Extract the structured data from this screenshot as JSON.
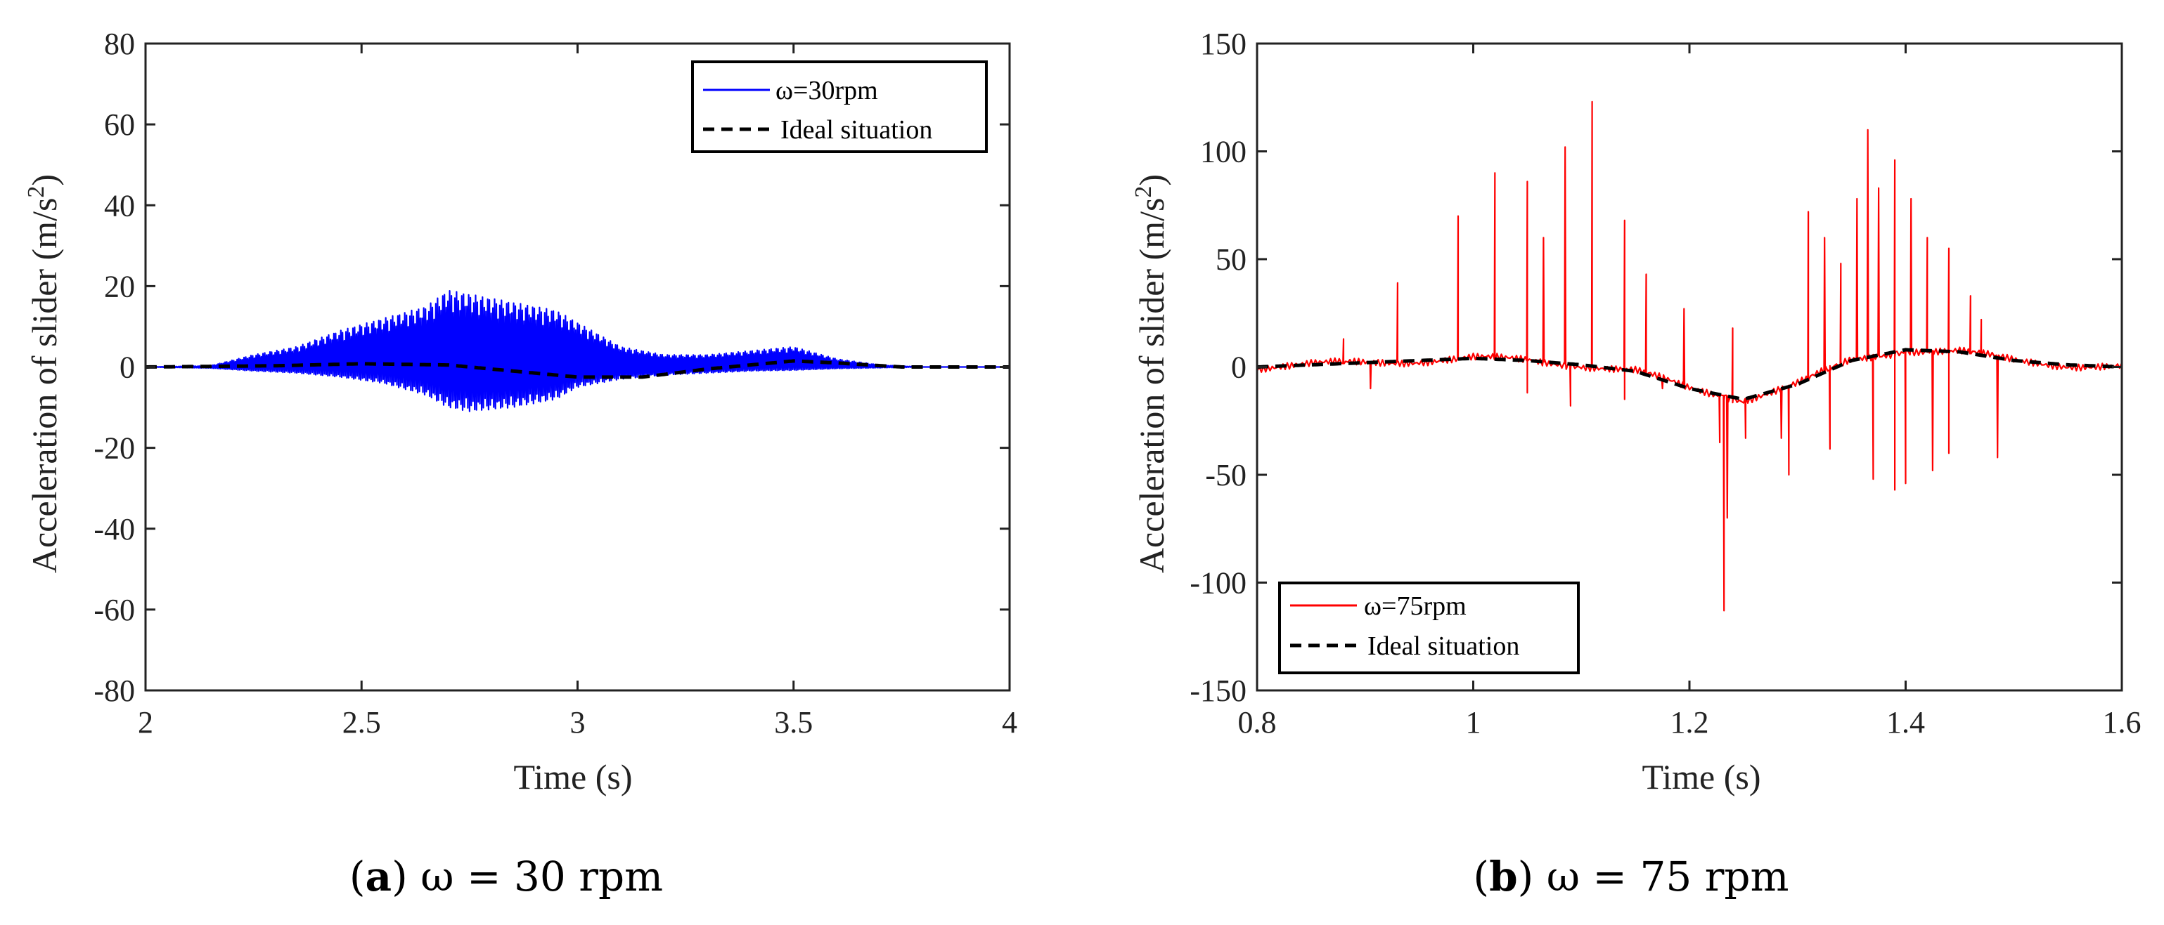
{
  "chart_data": [
    {
      "type": "line",
      "caption": {
        "letter": "a",
        "text": "ω = 30 rpm"
      },
      "xlabel": "Time (s)",
      "ylabel": "Acceleration of slider (m/s",
      "ylabel_sup": "2",
      "ylabel_close": ")",
      "xlim": [
        2,
        4
      ],
      "ylim": [
        -80,
        80
      ],
      "xticks": [
        "2",
        "2.5",
        "3",
        "3.5",
        "4"
      ],
      "xtick_values": [
        2,
        2.5,
        3,
        3.5,
        4
      ],
      "yticks": [
        "-80",
        "-60",
        "-40",
        "-20",
        "0",
        "20",
        "40",
        "60",
        "80"
      ],
      "ytick_values": [
        -80,
        -60,
        -40,
        -20,
        0,
        20,
        40,
        60,
        80
      ],
      "grid": false,
      "legend": "top-right",
      "series": [
        {
          "name": "ω=30rpm",
          "color": "#0000ff",
          "style": "solid",
          "envelope_x": [
            2.0,
            2.15,
            2.25,
            2.35,
            2.45,
            2.55,
            2.65,
            2.7,
            2.75,
            2.85,
            2.95,
            3.0,
            3.1,
            3.2,
            3.3,
            3.4,
            3.5,
            3.6,
            3.7,
            3.8,
            4.0
          ],
          "envelope_upper": [
            0,
            0.3,
            3,
            5,
            9,
            12,
            15,
            19,
            18,
            16,
            14,
            11,
            5,
            3,
            3,
            4,
            5,
            2,
            0.5,
            0,
            0
          ],
          "envelope_lower": [
            0,
            -0.3,
            -1,
            -1.5,
            -2.5,
            -4,
            -7,
            -10,
            -11,
            -10,
            -8,
            -5,
            -3,
            -2,
            -1.5,
            -1,
            -0.8,
            -0.4,
            -0.2,
            0,
            0
          ],
          "oscillation_hz": 250
        },
        {
          "name": "Ideal situation",
          "color": "#000000",
          "style": "dashed",
          "x": [
            2.0,
            2.3,
            2.5,
            2.7,
            2.85,
            3.0,
            3.15,
            3.3,
            3.5,
            3.6,
            3.75,
            4.0
          ],
          "y": [
            0,
            0.3,
            0.8,
            0.5,
            -1,
            -2.5,
            -2.5,
            -0.5,
            1.5,
            1,
            0,
            0
          ]
        }
      ]
    },
    {
      "type": "line",
      "caption": {
        "letter": "b",
        "text": "ω = 75 rpm"
      },
      "xlabel": "Time (s)",
      "ylabel": "Acceleration of slider (m/s",
      "ylabel_sup": "2",
      "ylabel_close": ")",
      "xlim": [
        0.8,
        1.6
      ],
      "ylim": [
        -150,
        150
      ],
      "xticks": [
        "0.8",
        "1",
        "1.2",
        "1.4",
        "1.6"
      ],
      "xtick_values": [
        0.8,
        1.0,
        1.2,
        1.4,
        1.6
      ],
      "yticks": [
        "-150",
        "-100",
        "-50",
        "0",
        "50",
        "100",
        "150"
      ],
      "ytick_values": [
        -150,
        -100,
        -50,
        0,
        50,
        100,
        150
      ],
      "grid": false,
      "legend": "bottom-left",
      "series": [
        {
          "name": "ω=75rpm",
          "color": "#ff0000",
          "style": "solid",
          "x": [
            0.8,
            0.85,
            0.9,
            0.95,
            1.0,
            1.05,
            1.1,
            1.15,
            1.2,
            1.25,
            1.3,
            1.35,
            1.4,
            1.45,
            1.5,
            1.55,
            1.6
          ],
          "y": [
            0,
            1,
            2,
            3,
            4,
            3,
            1,
            -2,
            -10,
            -15,
            -8,
            3,
            8,
            7,
            3,
            1,
            0
          ],
          "spikes": [
            {
              "x": 0.88,
              "y": 13
            },
            {
              "x": 0.93,
              "y": 39
            },
            {
              "x": 0.986,
              "y": 70
            },
            {
              "x": 1.02,
              "y": 90
            },
            {
              "x": 1.05,
              "y": 86
            },
            {
              "x": 1.065,
              "y": 60
            },
            {
              "x": 1.085,
              "y": 102
            },
            {
              "x": 1.11,
              "y": 123
            },
            {
              "x": 1.14,
              "y": 68
            },
            {
              "x": 1.16,
              "y": 43
            },
            {
              "x": 1.195,
              "y": 27
            },
            {
              "x": 1.24,
              "y": 18
            },
            {
              "x": 1.31,
              "y": 72
            },
            {
              "x": 1.325,
              "y": 60
            },
            {
              "x": 1.34,
              "y": 48
            },
            {
              "x": 1.355,
              "y": 78
            },
            {
              "x": 1.365,
              "y": 110
            },
            {
              "x": 1.375,
              "y": 83
            },
            {
              "x": 1.39,
              "y": 96
            },
            {
              "x": 1.405,
              "y": 78
            },
            {
              "x": 1.42,
              "y": 60
            },
            {
              "x": 1.44,
              "y": 55
            },
            {
              "x": 1.46,
              "y": 33
            },
            {
              "x": 1.47,
              "y": 22
            },
            {
              "x": 1.228,
              "y": -35
            },
            {
              "x": 1.232,
              "y": -113
            },
            {
              "x": 1.235,
              "y": -70
            },
            {
              "x": 1.252,
              "y": -33
            },
            {
              "x": 1.285,
              "y": -33
            },
            {
              "x": 1.292,
              "y": -50
            },
            {
              "x": 1.33,
              "y": -38
            },
            {
              "x": 1.37,
              "y": -52
            },
            {
              "x": 1.39,
              "y": -57
            },
            {
              "x": 1.4,
              "y": -54
            },
            {
              "x": 1.425,
              "y": -48
            },
            {
              "x": 1.44,
              "y": -40
            },
            {
              "x": 1.485,
              "y": -42
            },
            {
              "x": 1.05,
              "y": -12
            },
            {
              "x": 1.09,
              "y": -18
            },
            {
              "x": 1.14,
              "y": -15
            },
            {
              "x": 1.175,
              "y": -10
            },
            {
              "x": 0.905,
              "y": -10
            }
          ]
        },
        {
          "name": "Ideal situation",
          "color": "#000000",
          "style": "dashed",
          "x": [
            0.8,
            0.85,
            0.9,
            0.95,
            1.0,
            1.05,
            1.1,
            1.15,
            1.2,
            1.25,
            1.3,
            1.35,
            1.4,
            1.45,
            1.5,
            1.55,
            1.6
          ],
          "y": [
            0,
            1,
            2,
            3,
            4,
            3,
            1,
            -2,
            -10,
            -15,
            -8,
            3,
            8,
            7,
            3,
            1,
            0
          ]
        }
      ]
    }
  ]
}
